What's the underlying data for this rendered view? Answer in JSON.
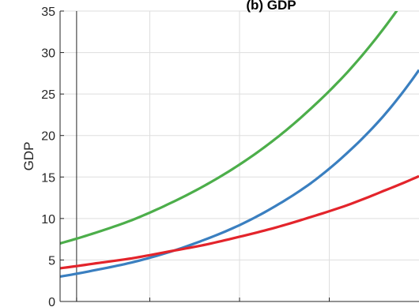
{
  "chart_data": {
    "type": "line",
    "title": "(b) GDP",
    "xlabel": "",
    "ylabel": "GDP",
    "ylim": [
      0,
      35
    ],
    "xlim": [
      0,
      100
    ],
    "yticks": [
      0,
      5,
      10,
      15,
      20,
      25,
      30,
      35
    ],
    "grid": true,
    "vertical_marker": 4.6,
    "series": [
      {
        "color": "#4cae4a",
        "x": [
          0,
          10,
          20,
          30,
          40,
          50,
          60,
          70,
          80,
          90,
          100
        ],
        "values": [
          7.0,
          8.3,
          9.8,
          11.7,
          13.9,
          16.5,
          19.6,
          23.3,
          27.6,
          32.8,
          39.0
        ]
      },
      {
        "color": "#3a7fc0",
        "x": [
          0,
          10,
          20,
          30,
          40,
          50,
          60,
          70,
          80,
          90,
          100
        ],
        "values": [
          3.0,
          3.8,
          4.7,
          5.9,
          7.4,
          9.2,
          11.5,
          14.3,
          17.9,
          22.3,
          27.9
        ]
      },
      {
        "color": "#e3242b",
        "x": [
          0,
          10,
          20,
          30,
          40,
          50,
          60,
          70,
          80,
          90,
          100
        ],
        "values": [
          4.0,
          4.6,
          5.2,
          6.0,
          6.8,
          7.8,
          8.9,
          10.2,
          11.6,
          13.3,
          15.1
        ]
      }
    ]
  }
}
